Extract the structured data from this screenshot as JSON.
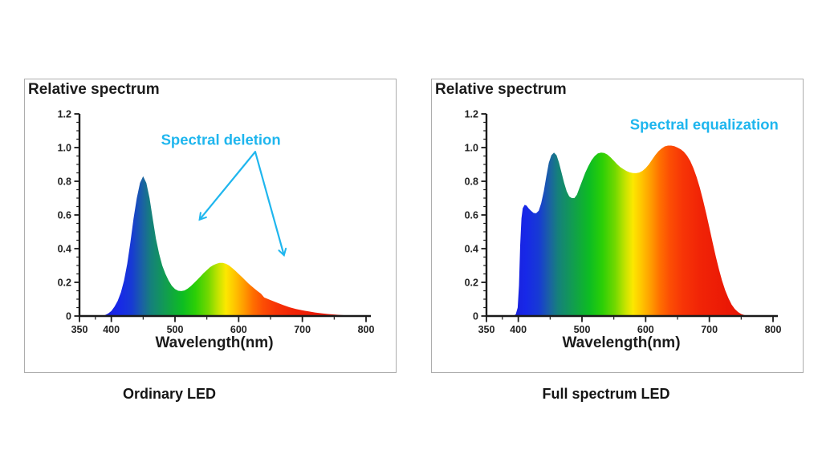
{
  "figure": {
    "background": "#ffffff",
    "panel_border_color": "#adadad",
    "axis_color": "#1a1a1a",
    "tick_label_color": "#222222",
    "annotation_color": "#1fb6ee"
  },
  "spectrum_gradient": [
    [
      350,
      "#2121c8"
    ],
    [
      390,
      "#1a20da"
    ],
    [
      412,
      "#1728e8"
    ],
    [
      432,
      "#173ad4"
    ],
    [
      450,
      "#1a64a0"
    ],
    [
      462,
      "#15807c"
    ],
    [
      478,
      "#12945e"
    ],
    [
      495,
      "#10a83e"
    ],
    [
      512,
      "#0dbd22"
    ],
    [
      532,
      "#2ccf06"
    ],
    [
      552,
      "#72d800"
    ],
    [
      567,
      "#c0e300"
    ],
    [
      580,
      "#fce800"
    ],
    [
      594,
      "#ffc400"
    ],
    [
      608,
      "#ff9c00"
    ],
    [
      622,
      "#ff7000"
    ],
    [
      638,
      "#fc4e04"
    ],
    [
      658,
      "#f73506"
    ],
    [
      685,
      "#f12406"
    ],
    [
      730,
      "#ea1805"
    ],
    [
      800,
      "#e21206"
    ]
  ],
  "chart_data": [
    {
      "type": "area",
      "title": "Relative spectrum",
      "caption": "Ordinary LED",
      "xlabel": "Wavelength(nm)",
      "ylabel": "Relative spectrum",
      "xlim": [
        350,
        800
      ],
      "ylim": [
        0,
        1.2
      ],
      "x_ticks": [
        350,
        400,
        500,
        600,
        700,
        800
      ],
      "x_tick_labels": [
        "350",
        "400",
        "500",
        "600",
        "700",
        "800"
      ],
      "x_minor_ticks": [
        375,
        450,
        550,
        650,
        750
      ],
      "y_ticks": [
        0,
        0.2,
        0.4,
        0.6,
        0.8,
        1.0,
        1.2
      ],
      "y_tick_labels": [
        "0",
        "0.2",
        "0.4",
        "0.6",
        "0.8",
        "1.0",
        "1.2"
      ],
      "y_minor_step": 0.05,
      "grid": false,
      "annotation": {
        "text": "Spectral deletion",
        "x": 572,
        "y": 1.045
      },
      "arrows": [
        {
          "x1": 626,
          "y1": 0.975,
          "x2": 539,
          "y2": 0.574
        },
        {
          "x1": 626,
          "y1": 0.975,
          "x2": 671,
          "y2": 0.363
        }
      ],
      "points": [
        [
          385,
          0
        ],
        [
          390,
          0.005
        ],
        [
          395,
          0.015
        ],
        [
          400,
          0.03
        ],
        [
          405,
          0.055
        ],
        [
          410,
          0.09
        ],
        [
          415,
          0.14
        ],
        [
          420,
          0.21
        ],
        [
          425,
          0.31
        ],
        [
          430,
          0.44
        ],
        [
          435,
          0.58
        ],
        [
          440,
          0.7
        ],
        [
          445,
          0.79
        ],
        [
          450,
          0.83
        ],
        [
          455,
          0.79
        ],
        [
          460,
          0.7
        ],
        [
          465,
          0.58
        ],
        [
          470,
          0.46
        ],
        [
          475,
          0.37
        ],
        [
          480,
          0.3
        ],
        [
          485,
          0.25
        ],
        [
          490,
          0.21
        ],
        [
          495,
          0.18
        ],
        [
          500,
          0.16
        ],
        [
          505,
          0.15
        ],
        [
          510,
          0.148
        ],
        [
          515,
          0.152
        ],
        [
          520,
          0.163
        ],
        [
          525,
          0.178
        ],
        [
          530,
          0.196
        ],
        [
          535,
          0.215
        ],
        [
          540,
          0.235
        ],
        [
          545,
          0.255
        ],
        [
          550,
          0.273
        ],
        [
          555,
          0.29
        ],
        [
          560,
          0.302
        ],
        [
          565,
          0.31
        ],
        [
          570,
          0.315
        ],
        [
          575,
          0.315
        ],
        [
          580,
          0.31
        ],
        [
          585,
          0.3
        ],
        [
          590,
          0.285
        ],
        [
          595,
          0.268
        ],
        [
          600,
          0.25
        ],
        [
          605,
          0.232
        ],
        [
          610,
          0.213
        ],
        [
          615,
          0.195
        ],
        [
          620,
          0.178
        ],
        [
          625,
          0.162
        ],
        [
          630,
          0.147
        ],
        [
          635,
          0.133
        ],
        [
          640,
          0.11
        ],
        [
          650,
          0.095
        ],
        [
          660,
          0.08
        ],
        [
          670,
          0.065
        ],
        [
          680,
          0.052
        ],
        [
          690,
          0.042
        ],
        [
          700,
          0.034
        ],
        [
          710,
          0.027
        ],
        [
          720,
          0.021
        ],
        [
          730,
          0.016
        ],
        [
          740,
          0.012
        ],
        [
          750,
          0.009
        ],
        [
          760,
          0.006
        ],
        [
          770,
          0.004
        ],
        [
          780,
          0.002
        ],
        [
          790,
          0.001
        ],
        [
          798,
          0
        ]
      ]
    },
    {
      "type": "area",
      "title": "Relative spectrum",
      "caption": "Full spectrum LED",
      "xlabel": "Wavelength(nm)",
      "ylabel": "Relative spectrum",
      "xlim": [
        350,
        800
      ],
      "ylim": [
        0,
        1.2
      ],
      "x_ticks": [
        350,
        400,
        500,
        600,
        700,
        800
      ],
      "x_tick_labels": [
        "350",
        "400",
        "500",
        "600",
        "700",
        "800"
      ],
      "x_minor_ticks": [
        375,
        450,
        550,
        650,
        750
      ],
      "y_ticks": [
        0,
        0.2,
        0.4,
        0.6,
        0.8,
        1.0,
        1.2
      ],
      "y_tick_labels": [
        "0",
        "0.2",
        "0.4",
        "0.6",
        "0.8",
        "1.0",
        "1.2"
      ],
      "y_minor_step": 0.05,
      "grid": false,
      "annotation": {
        "text": "Spectral equalization",
        "x": 692,
        "y": 1.135
      },
      "arrows": [],
      "points": [
        [
          392,
          0
        ],
        [
          396,
          0.01
        ],
        [
          399,
          0.05
        ],
        [
          401,
          0.18
        ],
        [
          403,
          0.42
        ],
        [
          405,
          0.58
        ],
        [
          407,
          0.64
        ],
        [
          410,
          0.66
        ],
        [
          413,
          0.655
        ],
        [
          416,
          0.64
        ],
        [
          420,
          0.625
        ],
        [
          424,
          0.612
        ],
        [
          428,
          0.61
        ],
        [
          432,
          0.625
        ],
        [
          436,
          0.67
        ],
        [
          440,
          0.74
        ],
        [
          444,
          0.83
        ],
        [
          448,
          0.91
        ],
        [
          452,
          0.955
        ],
        [
          456,
          0.97
        ],
        [
          460,
          0.955
        ],
        [
          464,
          0.91
        ],
        [
          468,
          0.85
        ],
        [
          472,
          0.79
        ],
        [
          476,
          0.74
        ],
        [
          480,
          0.71
        ],
        [
          484,
          0.7
        ],
        [
          488,
          0.7
        ],
        [
          492,
          0.72
        ],
        [
          496,
          0.76
        ],
        [
          500,
          0.8
        ],
        [
          505,
          0.85
        ],
        [
          510,
          0.89
        ],
        [
          515,
          0.925
        ],
        [
          520,
          0.95
        ],
        [
          525,
          0.965
        ],
        [
          530,
          0.97
        ],
        [
          535,
          0.968
        ],
        [
          540,
          0.958
        ],
        [
          545,
          0.942
        ],
        [
          550,
          0.922
        ],
        [
          555,
          0.902
        ],
        [
          560,
          0.885
        ],
        [
          565,
          0.872
        ],
        [
          570,
          0.861
        ],
        [
          575,
          0.853
        ],
        [
          580,
          0.849
        ],
        [
          585,
          0.848
        ],
        [
          590,
          0.852
        ],
        [
          595,
          0.862
        ],
        [
          600,
          0.878
        ],
        [
          605,
          0.9
        ],
        [
          610,
          0.928
        ],
        [
          615,
          0.955
        ],
        [
          620,
          0.978
        ],
        [
          625,
          0.995
        ],
        [
          630,
          1.007
        ],
        [
          635,
          1.012
        ],
        [
          640,
          1.012
        ],
        [
          645,
          1.008
        ],
        [
          650,
          1.0
        ],
        [
          655,
          0.99
        ],
        [
          660,
          0.975
        ],
        [
          665,
          0.952
        ],
        [
          670,
          0.92
        ],
        [
          675,
          0.878
        ],
        [
          680,
          0.825
        ],
        [
          685,
          0.762
        ],
        [
          690,
          0.69
        ],
        [
          695,
          0.61
        ],
        [
          700,
          0.525
        ],
        [
          705,
          0.44
        ],
        [
          710,
          0.355
        ],
        [
          715,
          0.278
        ],
        [
          720,
          0.21
        ],
        [
          725,
          0.152
        ],
        [
          730,
          0.105
        ],
        [
          735,
          0.068
        ],
        [
          740,
          0.042
        ],
        [
          745,
          0.024
        ],
        [
          750,
          0.012
        ],
        [
          755,
          0.005
        ],
        [
          760,
          0.001
        ],
        [
          765,
          0
        ]
      ]
    }
  ]
}
